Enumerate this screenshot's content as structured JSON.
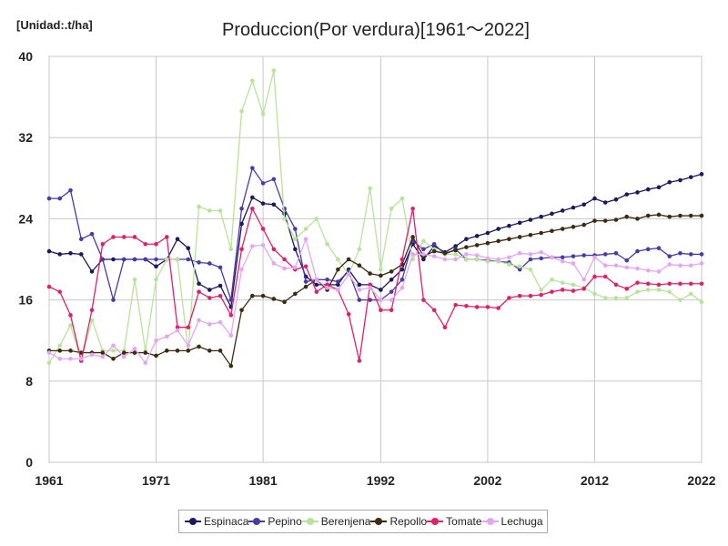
{
  "chart_data": {
    "type": "line",
    "title": "Produccion(Por verdura)[1961～2022]",
    "unit_label": "[Unidad:.t/ha]",
    "xlabel": "",
    "ylabel": "",
    "xlim": [
      1961,
      2022
    ],
    "ylim": [
      0,
      40
    ],
    "x_ticks": [
      1961,
      1971,
      1981,
      1992,
      2002,
      2012,
      2022
    ],
    "y_ticks": [
      0,
      8,
      16,
      24,
      32,
      40
    ],
    "grid": true,
    "legend_position": "bottom",
    "x": [
      1961,
      1962,
      1963,
      1964,
      1965,
      1966,
      1967,
      1968,
      1969,
      1970,
      1971,
      1972,
      1973,
      1974,
      1975,
      1976,
      1977,
      1978,
      1979,
      1980,
      1981,
      1982,
      1983,
      1984,
      1985,
      1986,
      1987,
      1988,
      1989,
      1990,
      1991,
      1992,
      1993,
      1994,
      1995,
      1996,
      1997,
      1998,
      1999,
      2000,
      2001,
      2002,
      2003,
      2004,
      2005,
      2006,
      2007,
      2008,
      2009,
      2010,
      2011,
      2012,
      2013,
      2014,
      2015,
      2016,
      2017,
      2018,
      2019,
      2020,
      2021,
      2022
    ],
    "series": [
      {
        "name": "Espinaca",
        "color": "#1a1a5e",
        "values": [
          20.8,
          20.5,
          20.6,
          20.5,
          18.8,
          20.0,
          20.0,
          20.0,
          20.0,
          20.0,
          19.3,
          20.0,
          22.0,
          21.1,
          17.6,
          17.0,
          17.4,
          15.3,
          23.5,
          26.1,
          25.5,
          25.4,
          24.5,
          21.0,
          18.3,
          17.5,
          17.5,
          17.5,
          19.0,
          17.5,
          17.5,
          17.0,
          18.0,
          19.0,
          21.5,
          20.0,
          21.3,
          20.7,
          21.3,
          22.0,
          22.3,
          22.6,
          23.0,
          23.3,
          23.6,
          23.9,
          24.2,
          24.5,
          24.8,
          25.1,
          25.4,
          26.0,
          25.6,
          25.9,
          26.4,
          26.6,
          26.9,
          27.1,
          27.6,
          27.8,
          28.1,
          28.4
        ]
      },
      {
        "name": "Pepino",
        "color": "#4a3aa8",
        "values": [
          26.0,
          26.0,
          26.8,
          22.0,
          22.5,
          20.0,
          16.0,
          20.0,
          20.0,
          20.0,
          20.0,
          20.0,
          20.0,
          20.0,
          19.7,
          19.6,
          19.2,
          16.0,
          25.0,
          29.0,
          27.5,
          27.9,
          25.0,
          23.0,
          17.8,
          18.0,
          18.0,
          17.8,
          18.8,
          16.0,
          16.0,
          16.0,
          16.8,
          18.0,
          21.8,
          21.0,
          21.5,
          20.5,
          21.0,
          20.0,
          20.0,
          19.9,
          19.8,
          19.7,
          19.0,
          20.0,
          20.1,
          20.2,
          20.2,
          20.3,
          20.4,
          20.4,
          20.5,
          20.6,
          19.9,
          20.8,
          21.0,
          21.1,
          20.3,
          20.6,
          20.5,
          20.5
        ]
      },
      {
        "name": "Berenjena",
        "color": "#b9e39a",
        "values": [
          9.8,
          11.5,
          13.5,
          10.0,
          14.0,
          11.0,
          11.0,
          11.0,
          18.0,
          11.0,
          18.0,
          20.0,
          20.0,
          11.0,
          25.2,
          24.8,
          24.8,
          21.0,
          34.6,
          37.6,
          34.3,
          38.6,
          24.0,
          22.0,
          23.0,
          24.0,
          21.5,
          20.0,
          18.5,
          21.0,
          27.0,
          19.0,
          25.0,
          26.0,
          20.0,
          21.8,
          21.0,
          20.5,
          20.5,
          20.0,
          20.0,
          19.8,
          19.8,
          19.5,
          19.3,
          19.0,
          17.0,
          18.0,
          17.7,
          17.5,
          17.2,
          16.6,
          16.2,
          16.2,
          16.2,
          16.8,
          17.0,
          17.0,
          16.8,
          16.0,
          16.6,
          15.8
        ]
      },
      {
        "name": "Repollo",
        "color": "#3d2a12",
        "values": [
          11.0,
          11.0,
          11.0,
          10.8,
          10.8,
          10.8,
          10.2,
          10.8,
          10.8,
          10.8,
          10.5,
          11.0,
          11.0,
          11.0,
          11.4,
          11.0,
          11.0,
          9.5,
          15.0,
          16.4,
          16.4,
          16.1,
          15.8,
          16.6,
          17.3,
          18.0,
          17.0,
          19.0,
          20.0,
          19.4,
          18.6,
          18.4,
          18.8,
          19.5,
          22.2,
          20.3,
          20.8,
          20.6,
          20.9,
          21.2,
          21.4,
          21.6,
          21.8,
          22.0,
          22.2,
          22.4,
          22.6,
          22.8,
          23.0,
          23.2,
          23.4,
          23.8,
          23.8,
          23.9,
          24.2,
          24.0,
          24.3,
          24.4,
          24.2,
          24.3,
          24.3,
          24.3
        ]
      },
      {
        "name": "Tomate",
        "color": "#e0206a",
        "values": [
          17.3,
          16.8,
          14.5,
          10.0,
          15.0,
          21.5,
          22.2,
          22.2,
          22.2,
          21.5,
          21.5,
          22.2,
          13.3,
          13.3,
          16.8,
          16.2,
          16.4,
          14.5,
          21.0,
          25.0,
          23.0,
          21.0,
          20.0,
          19.0,
          19.3,
          16.8,
          17.5,
          17.0,
          14.6,
          10.0,
          17.5,
          15.0,
          15.0,
          20.0,
          25.0,
          16.0,
          15.0,
          13.3,
          15.5,
          15.4,
          15.3,
          15.3,
          15.2,
          16.2,
          16.4,
          16.4,
          16.5,
          16.8,
          17.0,
          16.9,
          17.1,
          18.3,
          18.3,
          17.5,
          17.1,
          17.7,
          17.6,
          17.5,
          17.6,
          17.6,
          17.6,
          17.6
        ]
      },
      {
        "name": "Lechuga",
        "color": "#e4a6f0",
        "values": [
          10.8,
          10.2,
          10.2,
          10.2,
          10.6,
          10.4,
          11.5,
          10.4,
          11.2,
          9.8,
          12.0,
          12.4,
          13.0,
          11.5,
          14.0,
          13.6,
          13.8,
          12.5,
          19.0,
          21.3,
          21.4,
          19.6,
          19.1,
          19.2,
          22.0,
          18.0,
          17.2,
          17.0,
          18.5,
          17.0,
          17.2,
          16.0,
          16.0,
          17.2,
          20.5,
          20.5,
          20.3,
          20.0,
          20.0,
          20.5,
          20.4,
          20.1,
          20.0,
          20.2,
          20.6,
          20.5,
          20.7,
          20.2,
          19.8,
          19.6,
          18.0,
          20.2,
          19.4,
          19.4,
          19.2,
          19.1,
          18.9,
          18.8,
          19.5,
          19.4,
          19.4,
          19.6
        ]
      }
    ]
  }
}
